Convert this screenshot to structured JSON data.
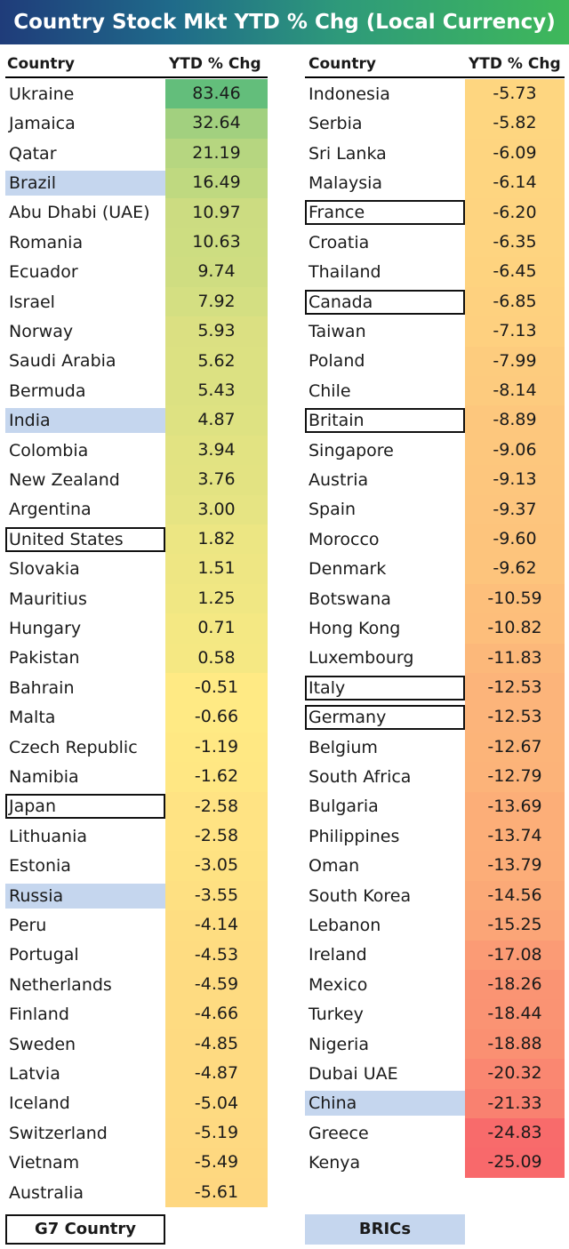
{
  "title": "Country Stock Mkt YTD % Chg (Local Currency)",
  "headers": {
    "country": "Country",
    "value": "YTD % Chg"
  },
  "legend": {
    "g7": "G7 Country",
    "brics": "BRICs"
  },
  "colors": {
    "positive_max": "#63be7b",
    "neutral": "#ffeb84",
    "negative_max": "#f8696b",
    "brics": "#c5d6ee",
    "g7_border": "#111111"
  },
  "chart_data": {
    "type": "table",
    "title": "Country Stock Mkt YTD % Chg (Local Currency)",
    "columns": [
      "Country",
      "YTD % Chg"
    ],
    "rows": [
      {
        "country": "Ukraine",
        "value": 83.46
      },
      {
        "country": "Jamaica",
        "value": 32.64
      },
      {
        "country": "Qatar",
        "value": 21.19
      },
      {
        "country": "Brazil",
        "value": 16.49,
        "group": "BRICs"
      },
      {
        "country": "Abu Dhabi (UAE)",
        "value": 10.97
      },
      {
        "country": "Romania",
        "value": 10.63
      },
      {
        "country": "Ecuador",
        "value": 9.74
      },
      {
        "country": "Israel",
        "value": 7.92
      },
      {
        "country": "Norway",
        "value": 5.93
      },
      {
        "country": "Saudi Arabia",
        "value": 5.62
      },
      {
        "country": "Bermuda",
        "value": 5.43
      },
      {
        "country": "India",
        "value": 4.87,
        "group": "BRICs"
      },
      {
        "country": "Colombia",
        "value": 3.94
      },
      {
        "country": "New Zealand",
        "value": 3.76
      },
      {
        "country": "Argentina",
        "value": 3.0
      },
      {
        "country": "United States",
        "value": 1.82,
        "group": "G7"
      },
      {
        "country": "Slovakia",
        "value": 1.51
      },
      {
        "country": "Mauritius",
        "value": 1.25
      },
      {
        "country": "Hungary",
        "value": 0.71
      },
      {
        "country": "Pakistan",
        "value": 0.58
      },
      {
        "country": "Bahrain",
        "value": -0.51
      },
      {
        "country": "Malta",
        "value": -0.66
      },
      {
        "country": "Czech Republic",
        "value": -1.19
      },
      {
        "country": "Namibia",
        "value": -1.62
      },
      {
        "country": "Japan",
        "value": -2.58,
        "group": "G7"
      },
      {
        "country": "Lithuania",
        "value": -2.58
      },
      {
        "country": "Estonia",
        "value": -3.05
      },
      {
        "country": "Russia",
        "value": -3.55,
        "group": "BRICs"
      },
      {
        "country": "Peru",
        "value": -4.14
      },
      {
        "country": "Portugal",
        "value": -4.53
      },
      {
        "country": "Netherlands",
        "value": -4.59
      },
      {
        "country": "Finland",
        "value": -4.66
      },
      {
        "country": "Sweden",
        "value": -4.85
      },
      {
        "country": "Latvia",
        "value": -4.87
      },
      {
        "country": "Iceland",
        "value": -5.04
      },
      {
        "country": "Switzerland",
        "value": -5.19
      },
      {
        "country": "Vietnam",
        "value": -5.49
      },
      {
        "country": "Australia",
        "value": -5.61
      },
      {
        "country": "Indonesia",
        "value": -5.73
      },
      {
        "country": "Serbia",
        "value": -5.82
      },
      {
        "country": "Sri Lanka",
        "value": -6.09
      },
      {
        "country": "Malaysia",
        "value": -6.14
      },
      {
        "country": "France",
        "value": -6.2,
        "group": "G7"
      },
      {
        "country": "Croatia",
        "value": -6.35
      },
      {
        "country": "Thailand",
        "value": -6.45
      },
      {
        "country": "Canada",
        "value": -6.85,
        "group": "G7"
      },
      {
        "country": "Taiwan",
        "value": -7.13
      },
      {
        "country": "Poland",
        "value": -7.99
      },
      {
        "country": "Chile",
        "value": -8.14
      },
      {
        "country": "Britain",
        "value": -8.89,
        "group": "G7"
      },
      {
        "country": "Singapore",
        "value": -9.06
      },
      {
        "country": "Austria",
        "value": -9.13
      },
      {
        "country": "Spain",
        "value": -9.37
      },
      {
        "country": "Morocco",
        "value": -9.6
      },
      {
        "country": "Denmark",
        "value": -9.62
      },
      {
        "country": "Botswana",
        "value": -10.59
      },
      {
        "country": "Hong Kong",
        "value": -10.82
      },
      {
        "country": "Luxembourg",
        "value": -11.83
      },
      {
        "country": "Italy",
        "value": -12.53,
        "group": "G7"
      },
      {
        "country": "Germany",
        "value": -12.53,
        "group": "G7"
      },
      {
        "country": "Belgium",
        "value": -12.67
      },
      {
        "country": "South Africa",
        "value": -12.79
      },
      {
        "country": "Bulgaria",
        "value": -13.69
      },
      {
        "country": "Philippines",
        "value": -13.74
      },
      {
        "country": "Oman",
        "value": -13.79
      },
      {
        "country": "South Korea",
        "value": -14.56
      },
      {
        "country": "Lebanon",
        "value": -15.25
      },
      {
        "country": "Ireland",
        "value": -17.08
      },
      {
        "country": "Mexico",
        "value": -18.26
      },
      {
        "country": "Turkey",
        "value": -18.44
      },
      {
        "country": "Nigeria",
        "value": -18.88
      },
      {
        "country": "Dubai UAE",
        "value": -20.32
      },
      {
        "country": "China",
        "value": -21.33,
        "group": "BRICs"
      },
      {
        "country": "Greece",
        "value": -24.83
      },
      {
        "country": "Kenya",
        "value": -25.09
      }
    ]
  }
}
